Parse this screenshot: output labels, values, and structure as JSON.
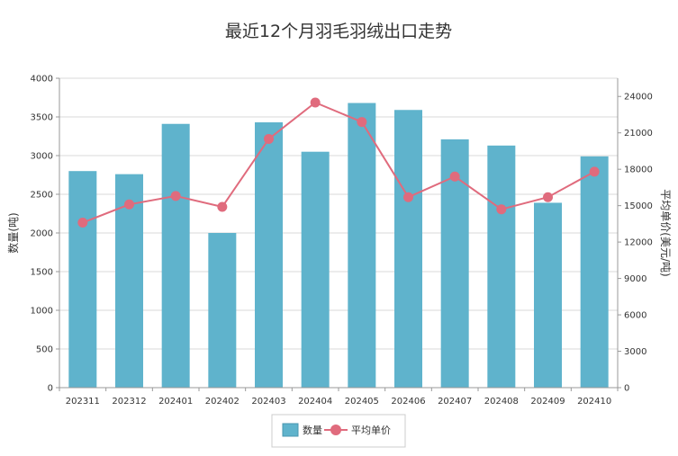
{
  "chart_data": {
    "type": "bar",
    "title": "最近12个月羽毛羽绒出口走势",
    "categories": [
      "202311",
      "202312",
      "202401",
      "202402",
      "202403",
      "202404",
      "202405",
      "202406",
      "202407",
      "202408",
      "202409",
      "202410"
    ],
    "series": [
      {
        "name": "数量",
        "type": "bar",
        "axis": "left",
        "color": "#5fb3cc",
        "values": [
          2800,
          2760,
          3410,
          2000,
          3430,
          3050,
          3680,
          3590,
          3210,
          3130,
          2390,
          2990
        ]
      },
      {
        "name": "平均单价",
        "type": "line",
        "axis": "right",
        "color": "#e06b7d",
        "values": [
          13600,
          15100,
          15800,
          14900,
          20500,
          23500,
          21900,
          15700,
          17400,
          14700,
          15700,
          17800
        ]
      }
    ],
    "y_left": {
      "label": "数量(吨)",
      "min": 0,
      "max": 4000,
      "ticks": [
        "0",
        "500",
        "1000",
        "1500",
        "2000",
        "2500",
        "3000",
        "3500",
        "4000"
      ]
    },
    "y_right": {
      "label": "平均单价(美元/吨)",
      "min": 0,
      "max": 25500,
      "ticks": [
        "0",
        "3000",
        "6000",
        "9000",
        "12000",
        "15000",
        "18000",
        "21000",
        "24000"
      ]
    },
    "grid": true,
    "legend_position": "bottom"
  }
}
